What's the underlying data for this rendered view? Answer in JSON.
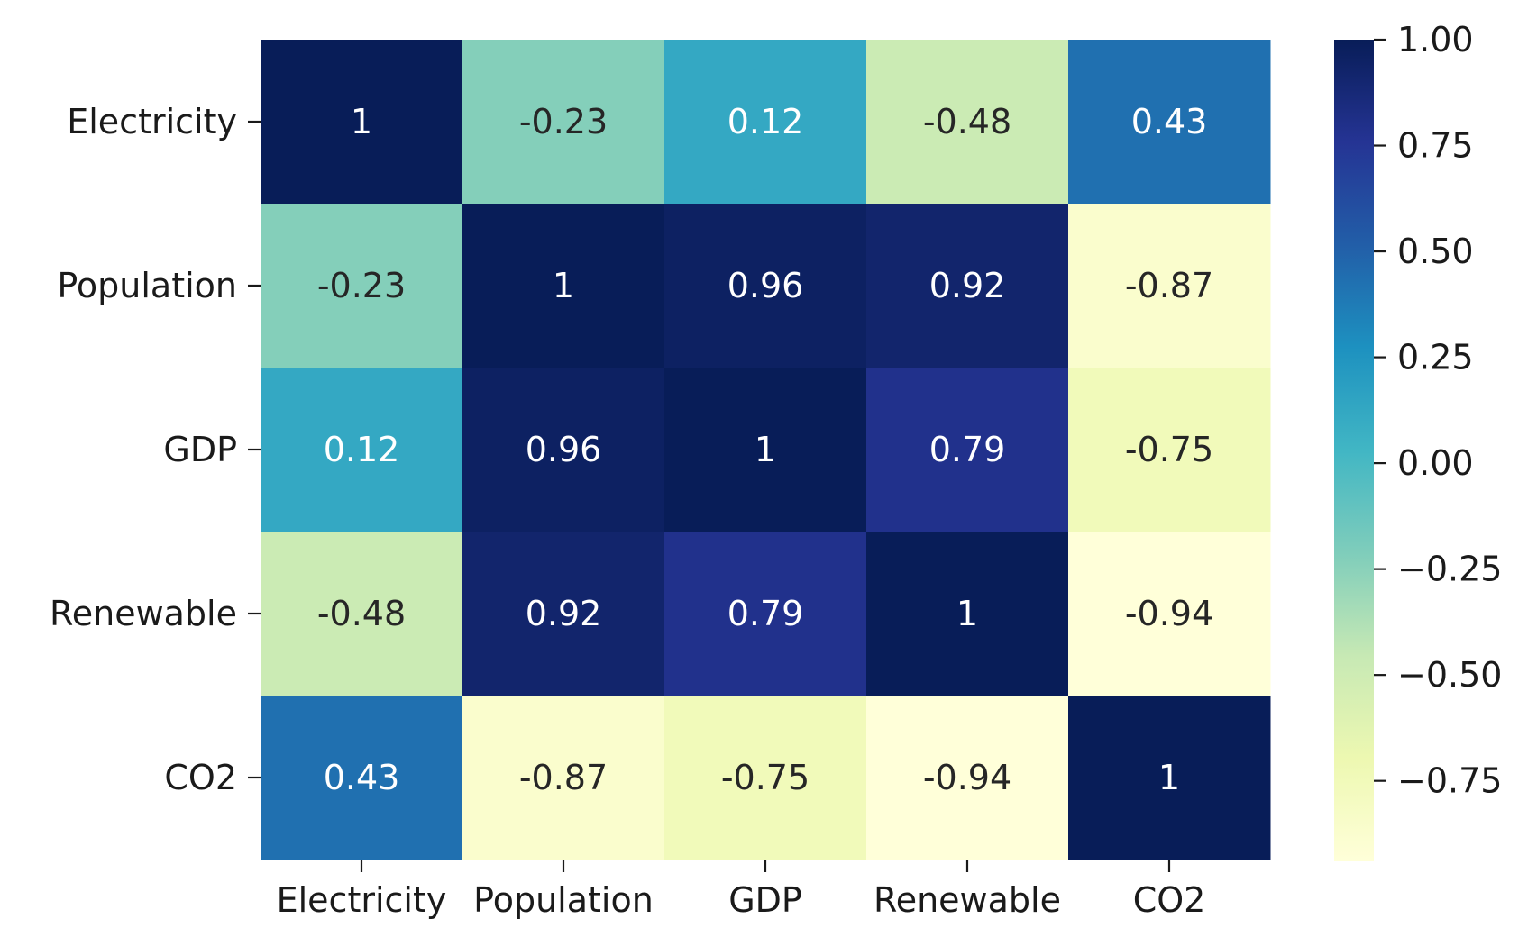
{
  "chart_data": {
    "type": "heatmap",
    "title": "",
    "xlabel": "",
    "ylabel": "",
    "x_categories": [
      "Electricity",
      "Population",
      "GDP",
      "Renewable",
      "CO2"
    ],
    "y_categories": [
      "Electricity",
      "Population",
      "GDP",
      "Renewable",
      "CO2"
    ],
    "values": [
      [
        1,
        -0.23,
        0.12,
        -0.48,
        0.43
      ],
      [
        -0.23,
        1,
        0.96,
        0.92,
        -0.87
      ],
      [
        0.12,
        0.96,
        1,
        0.79,
        -0.75
      ],
      [
        -0.48,
        0.92,
        0.79,
        1,
        -0.94
      ],
      [
        0.43,
        -0.87,
        -0.75,
        -0.94,
        1
      ]
    ],
    "value_labels": [
      [
        "1",
        "-0.23",
        "0.12",
        "-0.48",
        "0.43"
      ],
      [
        "-0.23",
        "1",
        "0.96",
        "0.92",
        "-0.87"
      ],
      [
        "0.12",
        "0.96",
        "1",
        "0.79",
        "-0.75"
      ],
      [
        "-0.48",
        "0.92",
        "0.79",
        "1",
        "-0.94"
      ],
      [
        "0.43",
        "-0.87",
        "-0.75",
        "-0.94",
        "1"
      ]
    ],
    "colormap": "YlGnBu",
    "vmin": -0.94,
    "vmax": 1.0,
    "colorbar": {
      "ticks": [
        1.0,
        0.75,
        0.5,
        0.25,
        0.0,
        -0.25,
        -0.5,
        -0.75
      ],
      "tick_labels": [
        "1.00",
        "0.75",
        "0.50",
        "0.25",
        "0.00",
        "−0.25",
        "−0.50",
        "−0.75"
      ],
      "placement": "right"
    },
    "colors": {
      "stops": [
        "#ffffd9",
        "#edf8b1",
        "#c7e9b4",
        "#7fcdbb",
        "#41b6c4",
        "#1d91c0",
        "#225ea8",
        "#253494",
        "#081d58"
      ],
      "text_dark": "#262626",
      "text_light": "#ffffff"
    }
  }
}
